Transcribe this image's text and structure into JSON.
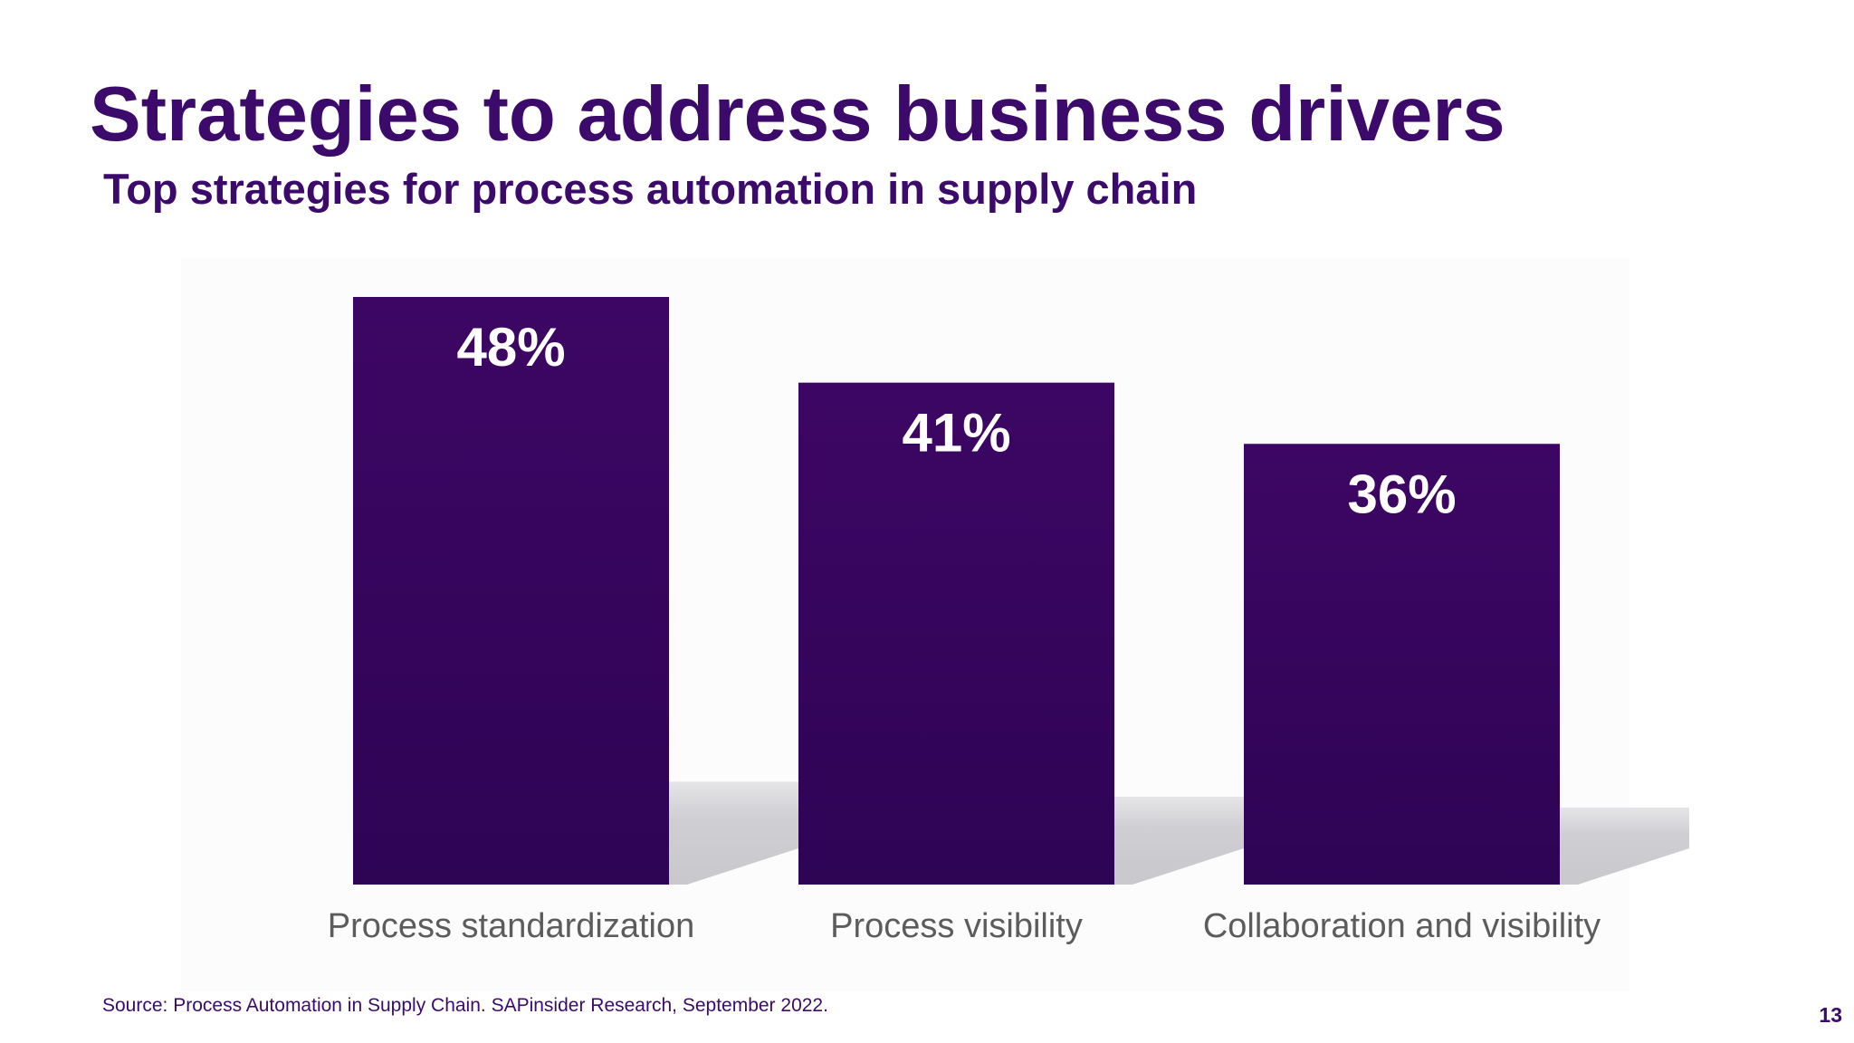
{
  "slide": {
    "title": "Strategies to address business drivers",
    "subtitle": "Top strategies for process automation in supply chain",
    "source": "Source: Process Automation in Supply Chain.  SAPinsider Research, September 2022.",
    "page_number": "13"
  },
  "colors": {
    "title": "#3b0a6b",
    "bar_top": "#3d0664",
    "bar_bottom": "#2e0455",
    "shadow": "#c9c8cc",
    "label": "#5c5c5c",
    "value_label": "#ffffff"
  },
  "chart_data": {
    "type": "bar",
    "title": "",
    "xlabel": "",
    "ylabel": "",
    "categories": [
      "Process standardization",
      "Process visibility",
      "Collaboration and visibility"
    ],
    "values": [
      48,
      41,
      36
    ],
    "value_labels": [
      "48%",
      "41%",
      "36%"
    ],
    "unit": "%",
    "ylim": [
      0,
      48
    ],
    "grid": false,
    "legend": "none"
  }
}
